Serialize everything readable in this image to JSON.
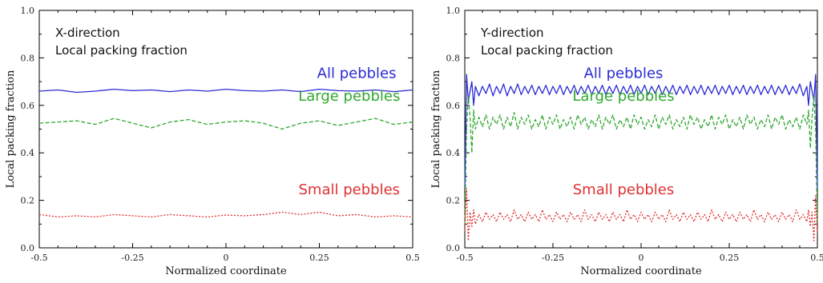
{
  "chart_data": [
    {
      "type": "line",
      "annotation_lines": [
        "X-direction",
        "Local packing fraction"
      ],
      "xlabel": "Normalized coordinate",
      "ylabel": "Local packing fraction",
      "xlim": [
        -0.5,
        0.5
      ],
      "ylim": [
        0.0,
        1.0
      ],
      "xticks": [
        -0.5,
        -0.25,
        0,
        0.25,
        0.5
      ],
      "xtick_labels": [
        "-0.5",
        "-0.25",
        "0",
        "0.25",
        "0.5"
      ],
      "yticks": [
        0.0,
        0.2,
        0.4,
        0.6,
        0.8,
        1.0
      ],
      "ytick_labels": [
        "0.0",
        "0.2",
        "0.4",
        "0.6",
        "0.8",
        "1.0"
      ],
      "grid": false,
      "series": [
        {
          "name": "All pebbles",
          "color": "#2b2bd6",
          "dash": "solid",
          "label_anchor": [
            0.35,
            0.715
          ],
          "x": [
            -0.5,
            -0.45,
            -0.4,
            -0.35,
            -0.3,
            -0.25,
            -0.2,
            -0.15,
            -0.1,
            -0.05,
            0,
            0.05,
            0.1,
            0.15,
            0.2,
            0.25,
            0.3,
            0.35,
            0.4,
            0.45,
            0.5
          ],
          "y": [
            0.66,
            0.665,
            0.655,
            0.66,
            0.668,
            0.662,
            0.665,
            0.658,
            0.665,
            0.66,
            0.668,
            0.662,
            0.66,
            0.665,
            0.658,
            0.668,
            0.662,
            0.66,
            0.665,
            0.658,
            0.665
          ]
        },
        {
          "name": "Large pebbles",
          "color": "#2fa82f",
          "dash": "dashed",
          "label_anchor": [
            0.33,
            0.62
          ],
          "x": [
            -0.5,
            -0.45,
            -0.4,
            -0.35,
            -0.3,
            -0.25,
            -0.2,
            -0.15,
            -0.1,
            -0.05,
            0,
            0.05,
            0.1,
            0.15,
            0.2,
            0.25,
            0.3,
            0.35,
            0.4,
            0.45,
            0.5
          ],
          "y": [
            0.525,
            0.53,
            0.535,
            0.52,
            0.545,
            0.525,
            0.505,
            0.53,
            0.54,
            0.52,
            0.53,
            0.535,
            0.525,
            0.5,
            0.525,
            0.535,
            0.515,
            0.53,
            0.545,
            0.52,
            0.53
          ]
        },
        {
          "name": "Small pebbles",
          "color": "#e03030",
          "dash": "dotted",
          "label_anchor": [
            0.33,
            0.225
          ],
          "x": [
            -0.5,
            -0.45,
            -0.4,
            -0.35,
            -0.3,
            -0.25,
            -0.2,
            -0.15,
            -0.1,
            -0.05,
            0,
            0.05,
            0.1,
            0.15,
            0.2,
            0.25,
            0.3,
            0.35,
            0.4,
            0.45,
            0.5
          ],
          "y": [
            0.14,
            0.13,
            0.135,
            0.13,
            0.14,
            0.135,
            0.13,
            0.14,
            0.135,
            0.13,
            0.138,
            0.135,
            0.14,
            0.15,
            0.14,
            0.15,
            0.135,
            0.14,
            0.13,
            0.135,
            0.13
          ]
        }
      ]
    },
    {
      "type": "line",
      "annotation_lines": [
        "Y-direction",
        "Local packing fraction"
      ],
      "xlabel": "Normalized coordinate",
      "ylabel": "Local packing fraction",
      "xlim": [
        -0.5,
        0.5
      ],
      "ylim": [
        0.0,
        1.0
      ],
      "xticks": [
        -0.5,
        -0.25,
        0,
        0.25,
        0.5
      ],
      "xtick_labels": [
        "-0.5",
        "-0.25",
        "0",
        "0.25",
        "0.5"
      ],
      "yticks": [
        0.0,
        0.2,
        0.4,
        0.6,
        0.8,
        1.0
      ],
      "ytick_labels": [
        "0.0",
        "0.2",
        "0.4",
        "0.6",
        "0.8",
        "1.0"
      ],
      "grid": false,
      "series": [
        {
          "name": "All pebbles",
          "color": "#2b2bd6",
          "dash": "solid",
          "label_anchor": [
            -0.05,
            0.715
          ],
          "x": [
            -0.5,
            -0.495,
            -0.49,
            -0.485,
            -0.48,
            -0.475,
            -0.47,
            -0.46,
            -0.45,
            -0.44,
            -0.43,
            -0.42,
            -0.41,
            -0.4,
            -0.39,
            -0.38,
            -0.37,
            -0.36,
            -0.35,
            -0.34,
            -0.33,
            -0.32,
            -0.31,
            -0.3,
            -0.29,
            -0.28,
            -0.27,
            -0.26,
            -0.25,
            -0.24,
            -0.23,
            -0.22,
            -0.21,
            -0.2,
            -0.19,
            -0.18,
            -0.17,
            -0.16,
            -0.15,
            -0.14,
            -0.13,
            -0.12,
            -0.11,
            -0.1,
            -0.09,
            -0.08,
            -0.07,
            -0.06,
            -0.05,
            -0.04,
            -0.03,
            -0.02,
            -0.01,
            0,
            0.01,
            0.02,
            0.03,
            0.04,
            0.05,
            0.06,
            0.07,
            0.08,
            0.09,
            0.1,
            0.11,
            0.12,
            0.13,
            0.14,
            0.15,
            0.16,
            0.17,
            0.18,
            0.19,
            0.2,
            0.21,
            0.22,
            0.23,
            0.24,
            0.25,
            0.26,
            0.27,
            0.28,
            0.29,
            0.3,
            0.31,
            0.32,
            0.33,
            0.34,
            0.35,
            0.36,
            0.37,
            0.38,
            0.39,
            0.4,
            0.41,
            0.42,
            0.43,
            0.44,
            0.45,
            0.46,
            0.47,
            0.475,
            0.48,
            0.485,
            0.49,
            0.495,
            0.5
          ],
          "y": [
            0.25,
            0.73,
            0.62,
            0.66,
            0.7,
            0.6,
            0.68,
            0.64,
            0.68,
            0.65,
            0.69,
            0.64,
            0.68,
            0.65,
            0.69,
            0.64,
            0.68,
            0.65,
            0.69,
            0.645,
            0.68,
            0.65,
            0.685,
            0.645,
            0.68,
            0.65,
            0.685,
            0.645,
            0.68,
            0.65,
            0.685,
            0.645,
            0.68,
            0.65,
            0.685,
            0.645,
            0.68,
            0.65,
            0.685,
            0.645,
            0.68,
            0.65,
            0.685,
            0.645,
            0.68,
            0.65,
            0.685,
            0.645,
            0.68,
            0.65,
            0.685,
            0.645,
            0.68,
            0.65,
            0.685,
            0.645,
            0.68,
            0.65,
            0.685,
            0.645,
            0.68,
            0.65,
            0.685,
            0.645,
            0.68,
            0.65,
            0.685,
            0.645,
            0.68,
            0.65,
            0.685,
            0.645,
            0.68,
            0.65,
            0.685,
            0.645,
            0.68,
            0.65,
            0.685,
            0.645,
            0.68,
            0.65,
            0.685,
            0.645,
            0.68,
            0.65,
            0.685,
            0.645,
            0.68,
            0.65,
            0.685,
            0.645,
            0.68,
            0.65,
            0.685,
            0.645,
            0.68,
            0.65,
            0.69,
            0.64,
            0.68,
            0.6,
            0.7,
            0.66,
            0.62,
            0.73,
            0.25
          ]
        },
        {
          "name": "Large pebbles",
          "color": "#2fa82f",
          "dash": "dashed",
          "label_anchor": [
            -0.05,
            0.62
          ],
          "x": [
            -0.5,
            -0.495,
            -0.49,
            -0.485,
            -0.48,
            -0.475,
            -0.47,
            -0.46,
            -0.45,
            -0.44,
            -0.43,
            -0.42,
            -0.41,
            -0.4,
            -0.39,
            -0.38,
            -0.37,
            -0.36,
            -0.35,
            -0.34,
            -0.33,
            -0.32,
            -0.31,
            -0.3,
            -0.29,
            -0.28,
            -0.27,
            -0.26,
            -0.25,
            -0.24,
            -0.23,
            -0.22,
            -0.21,
            -0.2,
            -0.19,
            -0.18,
            -0.17,
            -0.16,
            -0.15,
            -0.14,
            -0.13,
            -0.12,
            -0.11,
            -0.1,
            -0.09,
            -0.08,
            -0.07,
            -0.06,
            -0.05,
            -0.04,
            -0.03,
            -0.02,
            -0.01,
            0,
            0.01,
            0.02,
            0.03,
            0.04,
            0.05,
            0.06,
            0.07,
            0.08,
            0.09,
            0.1,
            0.11,
            0.12,
            0.13,
            0.14,
            0.15,
            0.16,
            0.17,
            0.18,
            0.19,
            0.2,
            0.21,
            0.22,
            0.23,
            0.24,
            0.25,
            0.26,
            0.27,
            0.28,
            0.29,
            0.3,
            0.31,
            0.32,
            0.33,
            0.34,
            0.35,
            0.36,
            0.37,
            0.38,
            0.39,
            0.4,
            0.41,
            0.42,
            0.43,
            0.44,
            0.45,
            0.46,
            0.47,
            0.475,
            0.48,
            0.485,
            0.49,
            0.495,
            0.5
          ],
          "y": [
            0.1,
            0.5,
            0.64,
            0.55,
            0.4,
            0.58,
            0.5,
            0.55,
            0.51,
            0.56,
            0.5,
            0.55,
            0.52,
            0.56,
            0.5,
            0.55,
            0.51,
            0.57,
            0.5,
            0.55,
            0.52,
            0.56,
            0.5,
            0.54,
            0.51,
            0.56,
            0.5,
            0.55,
            0.52,
            0.56,
            0.5,
            0.54,
            0.51,
            0.55,
            0.5,
            0.56,
            0.52,
            0.55,
            0.5,
            0.54,
            0.51,
            0.56,
            0.5,
            0.55,
            0.52,
            0.56,
            0.5,
            0.54,
            0.51,
            0.55,
            0.5,
            0.56,
            0.52,
            0.55,
            0.5,
            0.54,
            0.51,
            0.56,
            0.5,
            0.55,
            0.52,
            0.56,
            0.5,
            0.54,
            0.51,
            0.55,
            0.5,
            0.56,
            0.52,
            0.55,
            0.5,
            0.54,
            0.51,
            0.56,
            0.5,
            0.55,
            0.52,
            0.56,
            0.5,
            0.54,
            0.51,
            0.55,
            0.5,
            0.56,
            0.52,
            0.55,
            0.5,
            0.54,
            0.51,
            0.56,
            0.5,
            0.55,
            0.52,
            0.56,
            0.5,
            0.54,
            0.51,
            0.55,
            0.5,
            0.56,
            0.52,
            0.58,
            0.42,
            0.55,
            0.64,
            0.5,
            0.1
          ]
        },
        {
          "name": "Small pebbles",
          "color": "#e03030",
          "dash": "dotted",
          "label_anchor": [
            -0.05,
            0.225
          ],
          "x": [
            -0.5,
            -0.495,
            -0.49,
            -0.485,
            -0.48,
            -0.475,
            -0.47,
            -0.46,
            -0.45,
            -0.44,
            -0.43,
            -0.42,
            -0.41,
            -0.4,
            -0.39,
            -0.38,
            -0.37,
            -0.36,
            -0.35,
            -0.34,
            -0.33,
            -0.32,
            -0.31,
            -0.3,
            -0.29,
            -0.28,
            -0.27,
            -0.26,
            -0.25,
            -0.24,
            -0.23,
            -0.22,
            -0.21,
            -0.2,
            -0.19,
            -0.18,
            -0.17,
            -0.16,
            -0.15,
            -0.14,
            -0.13,
            -0.12,
            -0.11,
            -0.1,
            -0.09,
            -0.08,
            -0.07,
            -0.06,
            -0.05,
            -0.04,
            -0.03,
            -0.02,
            -0.01,
            0,
            0.01,
            0.02,
            0.03,
            0.04,
            0.05,
            0.06,
            0.07,
            0.08,
            0.09,
            0.1,
            0.11,
            0.12,
            0.13,
            0.14,
            0.15,
            0.16,
            0.17,
            0.18,
            0.19,
            0.2,
            0.21,
            0.22,
            0.23,
            0.24,
            0.25,
            0.26,
            0.27,
            0.28,
            0.29,
            0.3,
            0.31,
            0.32,
            0.33,
            0.34,
            0.35,
            0.36,
            0.37,
            0.38,
            0.39,
            0.4,
            0.41,
            0.42,
            0.43,
            0.44,
            0.45,
            0.46,
            0.47,
            0.475,
            0.48,
            0.485,
            0.49,
            0.495,
            0.5
          ],
          "y": [
            0.07,
            0.25,
            0.03,
            0.15,
            0.09,
            0.16,
            0.1,
            0.14,
            0.11,
            0.15,
            0.12,
            0.14,
            0.11,
            0.15,
            0.12,
            0.14,
            0.11,
            0.16,
            0.12,
            0.14,
            0.11,
            0.15,
            0.12,
            0.14,
            0.11,
            0.16,
            0.12,
            0.14,
            0.11,
            0.15,
            0.12,
            0.14,
            0.11,
            0.15,
            0.12,
            0.14,
            0.11,
            0.16,
            0.12,
            0.14,
            0.11,
            0.15,
            0.12,
            0.14,
            0.11,
            0.15,
            0.12,
            0.14,
            0.11,
            0.16,
            0.12,
            0.14,
            0.11,
            0.15,
            0.12,
            0.14,
            0.11,
            0.15,
            0.12,
            0.14,
            0.11,
            0.16,
            0.12,
            0.14,
            0.11,
            0.15,
            0.12,
            0.14,
            0.11,
            0.15,
            0.12,
            0.14,
            0.11,
            0.16,
            0.12,
            0.14,
            0.11,
            0.15,
            0.12,
            0.14,
            0.11,
            0.15,
            0.12,
            0.14,
            0.11,
            0.16,
            0.12,
            0.14,
            0.11,
            0.15,
            0.12,
            0.14,
            0.11,
            0.15,
            0.12,
            0.14,
            0.11,
            0.16,
            0.12,
            0.14,
            0.11,
            0.16,
            0.09,
            0.15,
            0.03,
            0.22,
            0.06
          ]
        }
      ]
    }
  ]
}
